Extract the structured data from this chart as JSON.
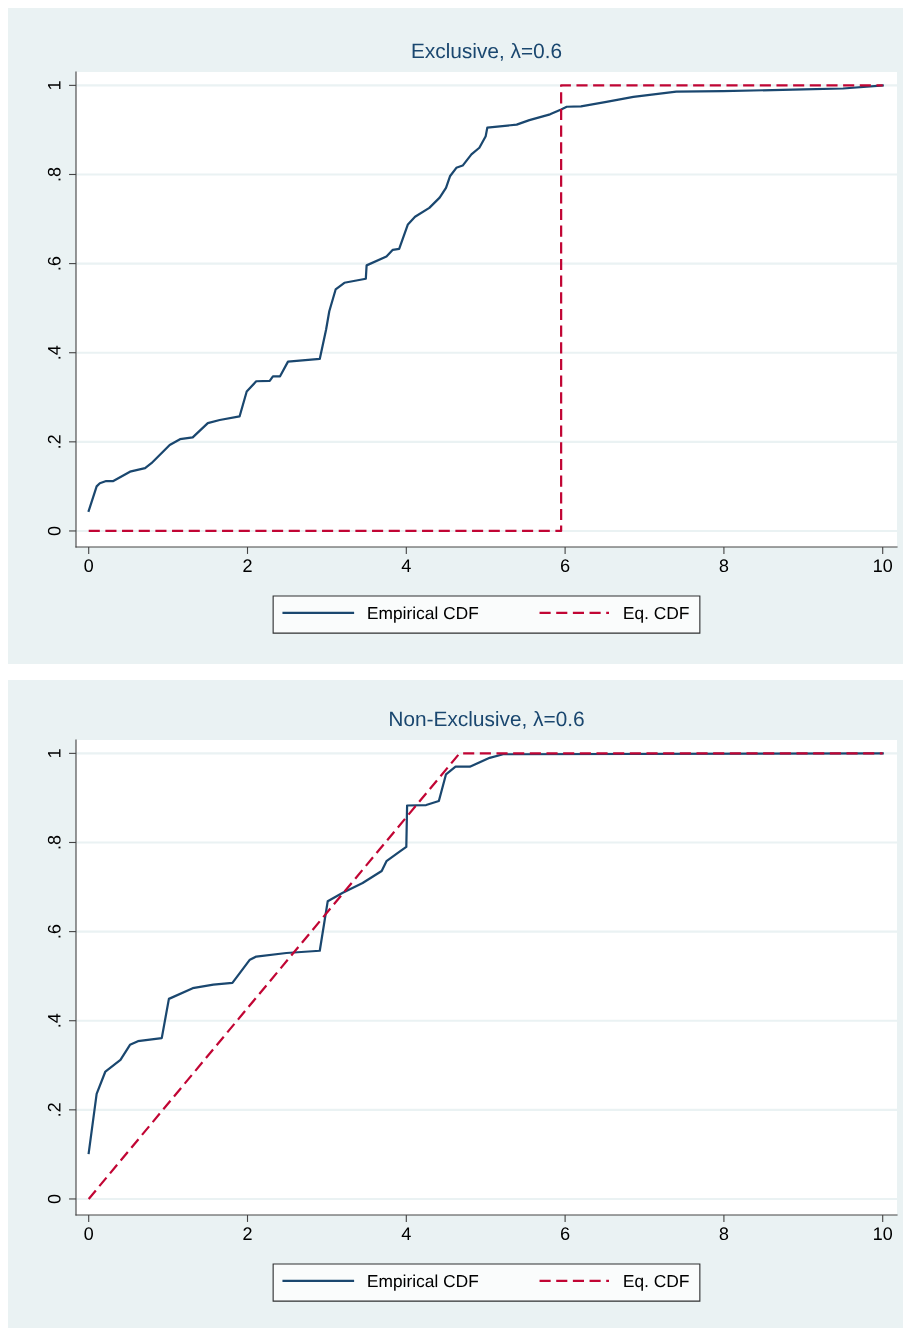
{
  "chart_data": [
    {
      "type": "line",
      "title": "Exclusive, λ=0.6",
      "xlim": [
        -0.16,
        10.18
      ],
      "ylim": [
        -0.036,
        1.03
      ],
      "xticks": [
        0,
        2,
        4,
        6,
        8,
        10
      ],
      "yticks": [
        {
          "value": 0,
          "label": "0"
        },
        {
          "value": 0.2,
          "label": ".2"
        },
        {
          "value": 0.4,
          "label": ".4"
        },
        {
          "value": 0.6,
          "label": ".6"
        },
        {
          "value": 0.8,
          "label": ".8"
        },
        {
          "value": 1,
          "label": "1"
        }
      ],
      "grid": "y",
      "legend": "bottom",
      "series": [
        {
          "name": "Empirical CDF",
          "color": "#1a476f",
          "line_style": "solid",
          "x": [
            0,
            0.1,
            0.14,
            0.22,
            0.31,
            0.52,
            0.71,
            0.79,
            1.02,
            1.15,
            1.31,
            1.5,
            1.65,
            1.9,
            1.99,
            2.11,
            2.28,
            2.32,
            2.41,
            2.51,
            2.91,
            2.99,
            3.03,
            3.11,
            3.22,
            3.49,
            3.5,
            3.75,
            3.83,
            3.91,
            4.02,
            4.11,
            4.29,
            4.42,
            4.5,
            4.55,
            4.63,
            4.71,
            4.82,
            4.92,
            5.0,
            5.02,
            5.39,
            5.55,
            5.81,
            5.95,
            6.02,
            6.2,
            6.52,
            6.86,
            7.4,
            7.99,
            9.0,
            9.5,
            10
          ],
          "values": [
            0.045,
            0.1,
            0.107,
            0.112,
            0.112,
            0.133,
            0.141,
            0.152,
            0.193,
            0.206,
            0.21,
            0.242,
            0.249,
            0.257,
            0.313,
            0.336,
            0.337,
            0.347,
            0.347,
            0.38,
            0.386,
            0.452,
            0.493,
            0.542,
            0.557,
            0.566,
            0.596,
            0.616,
            0.631,
            0.633,
            0.688,
            0.705,
            0.725,
            0.748,
            0.77,
            0.796,
            0.815,
            0.82,
            0.845,
            0.86,
            0.886,
            0.905,
            0.912,
            0.922,
            0.935,
            0.946,
            0.952,
            0.953,
            0.963,
            0.974,
            0.986,
            0.987,
            0.991,
            0.993,
            1.0
          ]
        },
        {
          "name": "Eq. CDF",
          "color": "#c10534",
          "line_style": "dashed",
          "x": [
            0,
            5.95,
            5.95,
            10
          ],
          "values": [
            0,
            0,
            1,
            1
          ]
        }
      ]
    },
    {
      "type": "line",
      "title": "Non-Exclusive, λ=0.6",
      "xlim": [
        -0.16,
        10.18
      ],
      "ylim": [
        -0.036,
        1.03
      ],
      "xticks": [
        0,
        2,
        4,
        6,
        8,
        10
      ],
      "yticks": [
        {
          "value": 0,
          "label": "0"
        },
        {
          "value": 0.2,
          "label": ".2"
        },
        {
          "value": 0.4,
          "label": ".4"
        },
        {
          "value": 0.6,
          "label": ".6"
        },
        {
          "value": 0.8,
          "label": ".8"
        },
        {
          "value": 1,
          "label": "1"
        }
      ],
      "grid": "y",
      "legend": "bottom",
      "series": [
        {
          "name": "Empirical CDF",
          "color": "#1a476f",
          "line_style": "solid",
          "x": [
            0,
            0.1,
            0.21,
            0.4,
            0.52,
            0.62,
            0.92,
            1.01,
            1.31,
            1.57,
            1.81,
            2.03,
            2.11,
            2.49,
            2.91,
            3.01,
            3.2,
            3.45,
            3.69,
            3.75,
            3.92,
            4.0,
            4.01,
            4.25,
            4.41,
            4.5,
            4.62,
            4.8,
            5.05,
            5.22,
            10
          ],
          "values": [
            0.103,
            0.236,
            0.286,
            0.312,
            0.346,
            0.354,
            0.361,
            0.449,
            0.473,
            0.481,
            0.485,
            0.537,
            0.544,
            0.552,
            0.557,
            0.668,
            0.687,
            0.709,
            0.736,
            0.758,
            0.78,
            0.79,
            0.883,
            0.884,
            0.893,
            0.953,
            0.97,
            0.97,
            0.99,
            0.998,
            1.0
          ]
        },
        {
          "name": "Eq. CDF",
          "color": "#c10534",
          "line_style": "dashed",
          "x": [
            0,
            4.67,
            10
          ],
          "values": [
            0,
            1,
            1
          ]
        }
      ]
    }
  ]
}
